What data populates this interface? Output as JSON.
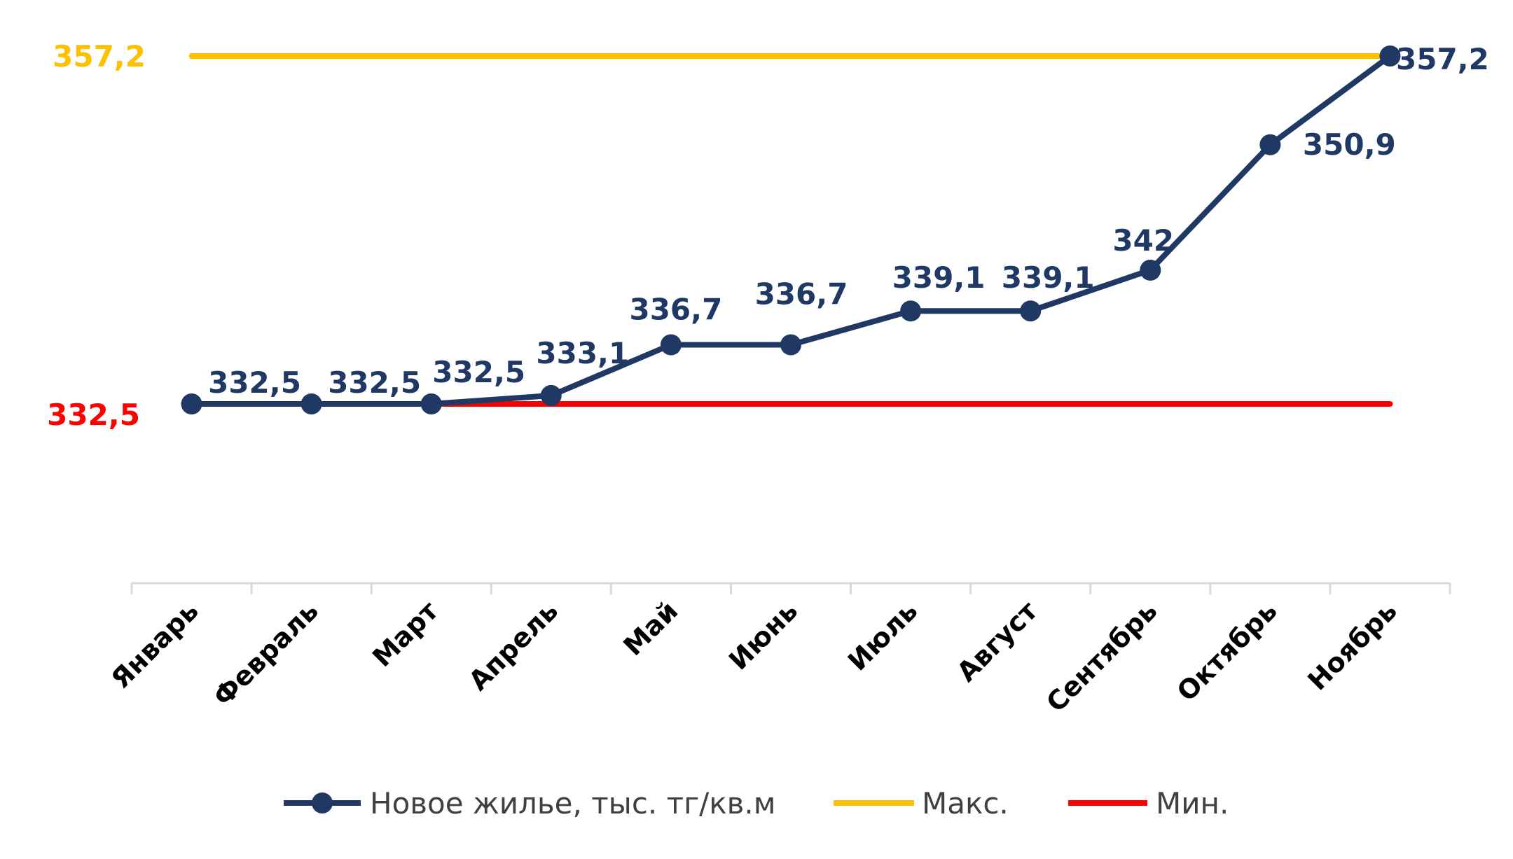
{
  "chart_data": {
    "type": "line",
    "categories": [
      "Январь",
      "Февраль",
      "Март",
      "Апрель",
      "Май",
      "Июнь",
      "Июль",
      "Август",
      "Сентябрь",
      "Октябрь",
      "Ноябрь"
    ],
    "series": [
      {
        "name": "Новое жилье, тыс. тг/кв.м",
        "values": [
          332.5,
          332.5,
          332.5,
          333.1,
          336.7,
          336.7,
          339.1,
          339.1,
          342,
          350.9,
          357.2
        ],
        "labels": [
          "332,5",
          "332,5",
          "332,5",
          "333,1",
          "336,7",
          "336,7",
          "339,1",
          "339,1",
          "342",
          "350,9",
          "357,2"
        ],
        "color": "#1f3864",
        "marker": "circle"
      },
      {
        "name": "Макс.",
        "values": [
          357.2,
          357.2,
          357.2,
          357.2,
          357.2,
          357.2,
          357.2,
          357.2,
          357.2,
          357.2,
          357.2
        ],
        "label": "357,2",
        "color": "#ffc000"
      },
      {
        "name": "Мин.",
        "values": [
          332.5,
          332.5,
          332.5,
          332.5,
          332.5,
          332.5,
          332.5,
          332.5,
          332.5,
          332.5,
          332.5
        ],
        "label": "332,5",
        "color": "#ff0000"
      }
    ],
    "ylim": [
      318,
      357.2
    ],
    "grid": false,
    "legend_position": "bottom"
  }
}
